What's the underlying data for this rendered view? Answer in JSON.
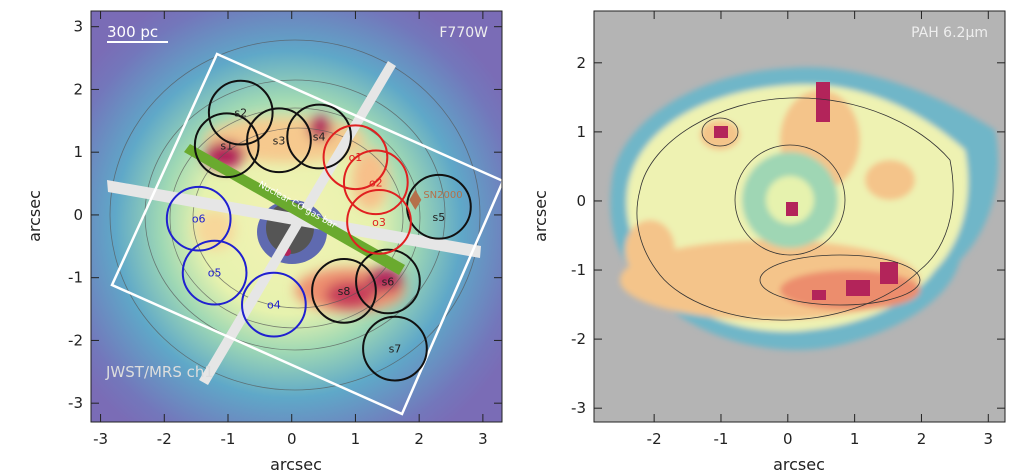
{
  "chart_data": [
    {
      "type": "heatmap",
      "panel": "left",
      "filter_label": "F770W",
      "instrument_label": "JWST/MRS ch1",
      "scalebar_label": "300 pc",
      "bar_label": "Nuclear CO gas bar",
      "xlabel": "arcsec",
      "ylabel": "arcsec",
      "xlim": [
        -3.15,
        3.3
      ],
      "ylim": [
        -3.3,
        3.25
      ],
      "xticks": [
        -3,
        -2,
        -1,
        0,
        1,
        2,
        3
      ],
      "yticks": [
        -3,
        -2,
        -1,
        0,
        1,
        2,
        3
      ],
      "apertures": [
        {
          "label": "s1",
          "x": -1.02,
          "y": 1.11,
          "color": "#111111"
        },
        {
          "label": "s2",
          "x": -0.8,
          "y": 1.63,
          "color": "#111111"
        },
        {
          "label": "s3",
          "x": -0.2,
          "y": 1.19,
          "color": "#111111"
        },
        {
          "label": "s4",
          "x": 0.43,
          "y": 1.25,
          "color": "#111111"
        },
        {
          "label": "s5",
          "x": 2.31,
          "y": 0.13,
          "color": "#111111"
        },
        {
          "label": "s6",
          "x": 1.51,
          "y": -1.06,
          "color": "#111111"
        },
        {
          "label": "s7",
          "x": 1.62,
          "y": -2.13,
          "color": "#111111"
        },
        {
          "label": "s8",
          "x": 0.82,
          "y": -1.21,
          "color": "#111111"
        },
        {
          "label": "o1",
          "x": 1.0,
          "y": 0.92,
          "color": "#e02020"
        },
        {
          "label": "o2",
          "x": 1.32,
          "y": 0.52,
          "color": "#e02020"
        },
        {
          "label": "o3",
          "x": 1.37,
          "y": -0.11,
          "color": "#e02020"
        },
        {
          "label": "o4",
          "x": -0.28,
          "y": -1.43,
          "color": "#2020d0"
        },
        {
          "label": "o5",
          "x": -1.21,
          "y": -0.92,
          "color": "#2020d0"
        },
        {
          "label": "o6",
          "x": -1.46,
          "y": -0.06,
          "color": "#2020d0"
        }
      ],
      "aperture_radius": 0.5,
      "supernova": {
        "label": "SN2000",
        "x": 1.94,
        "y": 0.24
      }
    },
    {
      "type": "heatmap",
      "panel": "right",
      "map_label": "PAH 6.2μm",
      "xlabel": "arcsec",
      "ylabel": "arcsec",
      "xlim": [
        -2.9,
        3.25
      ],
      "ylim": [
        -3.2,
        2.75
      ],
      "xticks": [
        -2,
        -1,
        0,
        1,
        2,
        3
      ],
      "yticks": [
        -3,
        -2,
        -1,
        0,
        1,
        2
      ]
    }
  ]
}
